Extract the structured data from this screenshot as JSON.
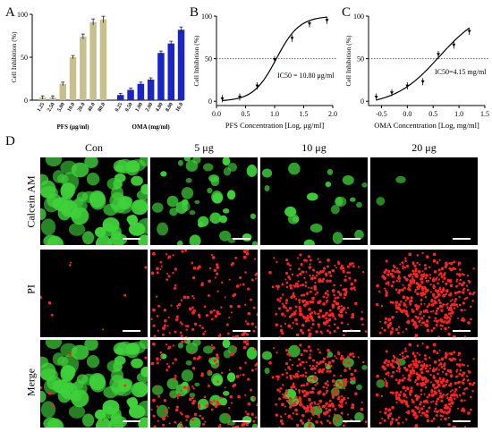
{
  "panels": {
    "a": "A",
    "b": "B",
    "c": "C",
    "d": "D"
  },
  "colors": {
    "pfs": "#c8bf8e",
    "oma": "#1a24c9",
    "ref": "#d83030",
    "green": "#3fd23a",
    "red": "#ff2222"
  },
  "chart_data": [
    {
      "type": "bar",
      "ylabel": "Cell Inhibition (%)",
      "ylim": [
        0,
        100
      ],
      "yticks": [
        "0",
        "50",
        "100"
      ],
      "groups": [
        {
          "name": "PFS (μg/ml)",
          "color": "#c8bf8e",
          "categories": [
            "1.25",
            "2.50",
            "5.00",
            "10.0",
            "20.0",
            "40.0",
            "80.0"
          ],
          "values": [
            3,
            3,
            19,
            50,
            74,
            91,
            94
          ]
        },
        {
          "name": "OMA (mg/ml)",
          "color": "#1a24c9",
          "categories": [
            "0.25",
            "0.50",
            "1.00",
            "2.00",
            "4.00",
            "8.00",
            "16.0"
          ],
          "values": [
            6,
            12,
            19,
            24,
            55,
            66,
            82
          ]
        }
      ]
    },
    {
      "type": "scatter",
      "xlabel": "PFS Concentration [Log, μg/ml]",
      "ylabel": "Cell Inhibition (%)",
      "xlim": [
        0,
        2
      ],
      "ylim": [
        -5,
        100
      ],
      "xticks": [
        "0.0",
        "0.5",
        "1.0",
        "1.5",
        "2.0"
      ],
      "yticks": [
        "0",
        "50",
        "100"
      ],
      "annotation": "IC50 = 10.80 μg/ml",
      "reference_y": 50,
      "points": [
        [
          0.1,
          3
        ],
        [
          0.4,
          5
        ],
        [
          0.7,
          18
        ],
        [
          1.0,
          49
        ],
        [
          1.3,
          74
        ],
        [
          1.6,
          91
        ],
        [
          1.9,
          95
        ]
      ],
      "curve": {
        "top": 100,
        "bottom": 0,
        "log_ic50": 1.03,
        "hill": 2.2
      }
    },
    {
      "type": "scatter",
      "xlabel": "OMA Concentration [Log, mg/ml]",
      "ylabel": "Cell Inhibition (%)",
      "xlim": [
        -0.75,
        1.5
      ],
      "ylim": [
        -5,
        100
      ],
      "xticks": [
        "-0.5",
        "0.0",
        "0.5",
        "1.0",
        "1.5"
      ],
      "yticks": [
        "0",
        "50",
        "100"
      ],
      "annotation": "IC50=4.15 mg/ml",
      "reference_y": 50,
      "points": [
        [
          -0.6,
          5
        ],
        [
          -0.3,
          10
        ],
        [
          0.0,
          18
        ],
        [
          0.3,
          23
        ],
        [
          0.6,
          55
        ],
        [
          0.9,
          66
        ],
        [
          1.2,
          82
        ]
      ],
      "curve": {
        "top": 110,
        "bottom": -5,
        "log_ic50": 0.62,
        "hill": 1.0
      }
    }
  ],
  "micrographs": {
    "columns": [
      "Con",
      "5 μg",
      "10 μg",
      "20 μg"
    ],
    "rows": [
      "Calcein AM",
      "PI",
      "Merge"
    ]
  }
}
